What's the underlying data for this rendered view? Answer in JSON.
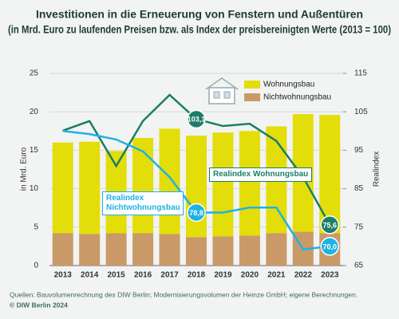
{
  "chart_data": {
    "type": "bar",
    "stacked": true,
    "title": "Investitionen in die Erneuerung von Fenstern und Außentüren",
    "subtitle": "(in Mrd. Euro zu laufenden Preisen bzw. als Index der preisbereinigten Werte (2013 = 100)",
    "y_label": "in Mrd. Euro",
    "y2_label": "Realindex",
    "categories": [
      "2013",
      "2014",
      "2015",
      "2016",
      "2017",
      "2018",
      "2019",
      "2020",
      "2021",
      "2022",
      "2023"
    ],
    "series": [
      {
        "name": "Wohnungsbau",
        "type": "bar",
        "color": "#e3dd0a",
        "values": [
          11.8,
          12.0,
          10.7,
          12.4,
          13.7,
          13.2,
          13.5,
          13.6,
          13.9,
          15.3,
          15.4
        ]
      },
      {
        "name": "Nichtwohnungsbau",
        "type": "bar",
        "color": "#c99a68",
        "values": [
          4.2,
          4.1,
          4.2,
          4.2,
          4.1,
          3.7,
          3.8,
          3.9,
          4.2,
          4.4,
          4.2
        ]
      },
      {
        "name": "Realindex Wohnungsbau",
        "type": "line",
        "axis": "y2",
        "color": "#1b7e68",
        "values": [
          100.1,
          102.6,
          90.9,
          102.6,
          109.4,
          103.1,
          101.3,
          101.9,
          97.4,
          88.0,
          75.6
        ],
        "value_labels": [
          null,
          null,
          null,
          null,
          null,
          "103,1",
          null,
          null,
          null,
          null,
          "75,6"
        ]
      },
      {
        "name": "Realindex Nichtwohnungsbau",
        "type": "line",
        "axis": "y2",
        "color": "#1fb2e4",
        "values": [
          100.0,
          99.2,
          97.8,
          94.7,
          88.0,
          78.8,
          78.8,
          80.1,
          80.1,
          69.2,
          70.0
        ],
        "value_labels": [
          null,
          null,
          null,
          null,
          null,
          "78,8",
          null,
          null,
          null,
          null,
          "70,0"
        ]
      }
    ],
    "ylim": [
      0,
      25
    ],
    "yticks": [
      0,
      5,
      10,
      15,
      20,
      25
    ],
    "y2lim": [
      65,
      115
    ],
    "y2ticks": [
      65,
      75,
      85,
      95,
      105,
      115
    ],
    "grid": true,
    "source": "Quellen: Bauvolumenrechnung des DIW Berlin; Modernisierungsvolumen der Heinze GmbH; eigene Berechnungen.",
    "copyright": "© DIW Berlin 2024"
  }
}
